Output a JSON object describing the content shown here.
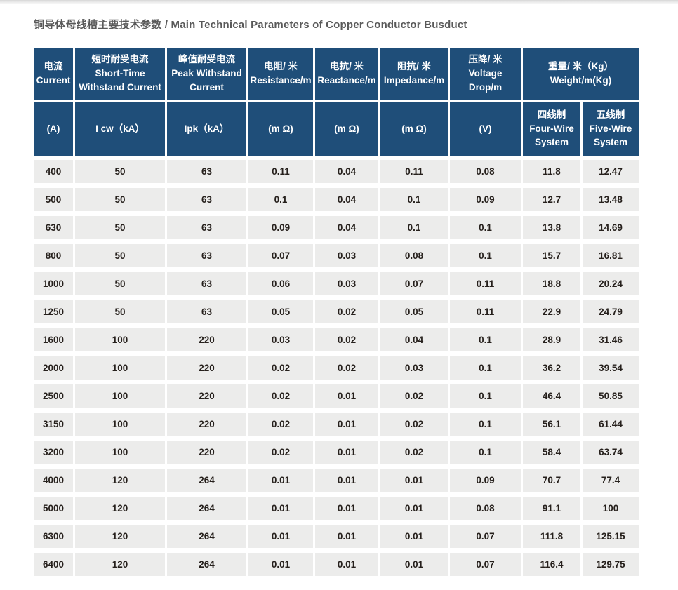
{
  "page": {
    "title": "铜导体母线槽主要技术参数 / Main Technical Parameters of Copper Conductor Busduct"
  },
  "colors": {
    "header_bg": "#1f4e79",
    "cell_bg": "#ececeb",
    "title_color": "#595959",
    "cell_text": "#26201c"
  },
  "table": {
    "header_row1": [
      {
        "zh": "电流",
        "en": "Current"
      },
      {
        "zh": "短时耐受电流",
        "en": "Short-Time Withstand Current"
      },
      {
        "zh": "峰值耐受电流",
        "en": "Peak Withstand Current"
      },
      {
        "zh": "电阻/ 米",
        "en": "Resistance/m"
      },
      {
        "zh": "电抗/ 米",
        "en": "Reactance/m"
      },
      {
        "zh": "阻抗/ 米",
        "en": "Impedance/m"
      },
      {
        "zh": "压降/ 米",
        "en": "Voltage Drop/m"
      },
      {
        "zh": "重量/ 米（Kg）",
        "en": "Weight/m(Kg)"
      }
    ],
    "header_row2": [
      {
        "zh": "(A)",
        "en": ""
      },
      {
        "zh": "I cw（kA）",
        "en": ""
      },
      {
        "zh": "Ipk（kA）",
        "en": ""
      },
      {
        "zh": "(m Ω)",
        "en": ""
      },
      {
        "zh": "(m Ω)",
        "en": ""
      },
      {
        "zh": "(m Ω)",
        "en": ""
      },
      {
        "zh": "(V)",
        "en": ""
      },
      {
        "zh": "四线制",
        "en": "Four-Wire System"
      },
      {
        "zh": "五线制",
        "en": "Five-Wire System"
      }
    ],
    "rows": [
      [
        "400",
        "50",
        "63",
        "0.11",
        "0.04",
        "0.11",
        "0.08",
        "11.8",
        "12.47"
      ],
      [
        "500",
        "50",
        "63",
        "0.1",
        "0.04",
        "0.1",
        "0.09",
        "12.7",
        "13.48"
      ],
      [
        "630",
        "50",
        "63",
        "0.09",
        "0.04",
        "0.1",
        "0.1",
        "13.8",
        "14.69"
      ],
      [
        "800",
        "50",
        "63",
        "0.07",
        "0.03",
        "0.08",
        "0.1",
        "15.7",
        "16.81"
      ],
      [
        "1000",
        "50",
        "63",
        "0.06",
        "0.03",
        "0.07",
        "0.11",
        "18.8",
        "20.24"
      ],
      [
        "1250",
        "50",
        "63",
        "0.05",
        "0.02",
        "0.05",
        "0.11",
        "22.9",
        "24.79"
      ],
      [
        "1600",
        "100",
        "220",
        "0.03",
        "0.02",
        "0.04",
        "0.1",
        "28.9",
        "31.46"
      ],
      [
        "2000",
        "100",
        "220",
        "0.02",
        "0.02",
        "0.03",
        "0.1",
        "36.2",
        "39.54"
      ],
      [
        "2500",
        "100",
        "220",
        "0.02",
        "0.01",
        "0.02",
        "0.1",
        "46.4",
        "50.85"
      ],
      [
        "3150",
        "100",
        "220",
        "0.02",
        "0.01",
        "0.02",
        "0.1",
        "56.1",
        "61.44"
      ],
      [
        "3200",
        "100",
        "220",
        "0.02",
        "0.01",
        "0.02",
        "0.1",
        "58.4",
        "63.74"
      ],
      [
        "4000",
        "120",
        "264",
        "0.01",
        "0.01",
        "0.01",
        "0.09",
        "70.7",
        "77.4"
      ],
      [
        "5000",
        "120",
        "264",
        "0.01",
        "0.01",
        "0.01",
        "0.08",
        "91.1",
        "100"
      ],
      [
        "6300",
        "120",
        "264",
        "0.01",
        "0.01",
        "0.01",
        "0.07",
        "111.8",
        "125.15"
      ],
      [
        "6400",
        "120",
        "264",
        "0.01",
        "0.01",
        "0.01",
        "0.07",
        "116.4",
        "129.75"
      ]
    ]
  }
}
